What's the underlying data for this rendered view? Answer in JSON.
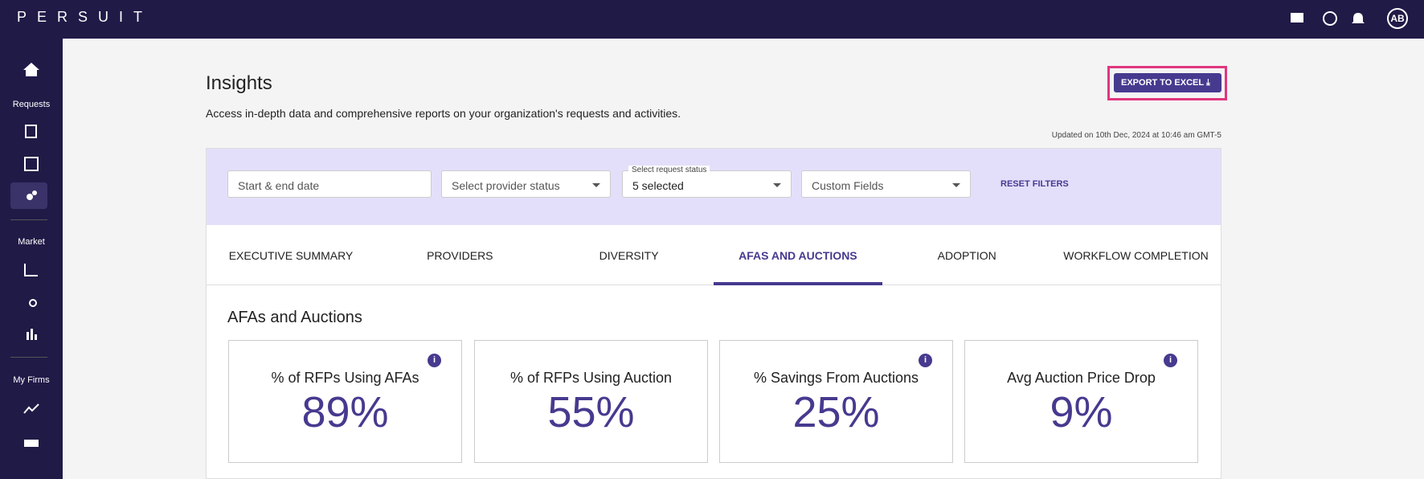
{
  "header": {
    "brand": "PERSUIT",
    "avatar": "AB"
  },
  "sidebar": {
    "sections": [
      "Requests",
      "Market",
      "My Firms"
    ]
  },
  "page": {
    "title": "Insights",
    "subtitle": "Access in-depth data and comprehensive reports on your organization's requests and activities.",
    "export_button": "EXPORT TO EXCEL",
    "updated": "Updated on 10th Dec, 2024 at 10:46 am GMT-5"
  },
  "filters": {
    "date": "Start & end date",
    "provider_status": "Select provider status",
    "request_status_label": "Select request status",
    "request_status_value": "5 selected",
    "custom_fields": "Custom Fields",
    "reset": "RESET FILTERS"
  },
  "tabs": [
    "EXECUTIVE SUMMARY",
    "PROVIDERS",
    "DIVERSITY",
    "AFAS AND AUCTIONS",
    "ADOPTION",
    "WORKFLOW COMPLETION"
  ],
  "section": {
    "title": "AFAs and Auctions",
    "cards": [
      {
        "label": "% of RFPs Using AFAs",
        "value": "89%"
      },
      {
        "label": "% of RFPs Using Auction",
        "value": "55%"
      },
      {
        "label": "% Savings From Auctions",
        "value": "25%"
      },
      {
        "label": "Avg Auction Price Drop",
        "value": "9%"
      }
    ]
  }
}
